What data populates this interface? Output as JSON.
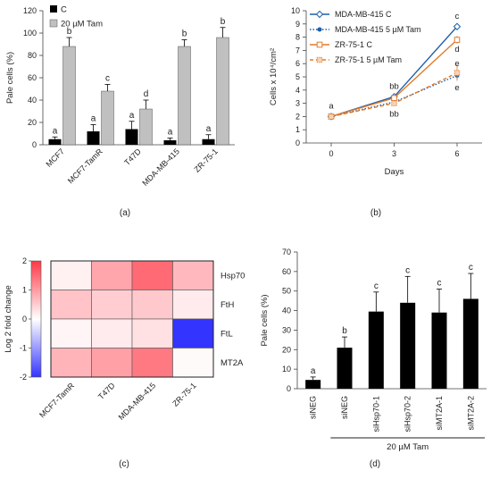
{
  "panels": {
    "a": {
      "label": "(a)",
      "chart_data": {
        "type": "bar",
        "ylabel": "Pale cells (%)",
        "ylim": [
          0,
          120
        ],
        "yticks": [
          0,
          20,
          40,
          60,
          80,
          100,
          120
        ],
        "categories": [
          "MCF7",
          "MCF7-TamR",
          "T47D",
          "MDA-MB-415",
          "ZR-75-1"
        ],
        "legend_position": "top-left",
        "series": [
          {
            "name": "C",
            "color": "#000000",
            "values": [
              5,
              12,
              14,
              4,
              5
            ],
            "errors": [
              2,
              6,
              7,
              2,
              4
            ],
            "letters": [
              "a",
              "a",
              "a",
              "a",
              "a"
            ]
          },
          {
            "name": "20 µM Tam",
            "color": "#c0c0c0",
            "values": [
              88,
              48,
              32,
              88,
              96
            ],
            "errors": [
              8,
              6,
              8,
              6,
              9
            ],
            "letters": [
              "b",
              "c",
              "d",
              "b",
              "b"
            ]
          }
        ]
      }
    },
    "b": {
      "label": "(b)",
      "chart_data": {
        "type": "line",
        "xlabel": "Days",
        "ylabel": "Cells x 10⁴/cm²",
        "x": [
          0,
          3,
          6
        ],
        "ylim": [
          0,
          10
        ],
        "yticks": [
          0,
          1,
          2,
          3,
          4,
          5,
          6,
          7,
          8,
          9,
          10
        ],
        "legend_position": "top-left",
        "series": [
          {
            "name": "MDA-MB-415 C",
            "color": "#1f5fa8",
            "dash": "solid",
            "marker": "diamond",
            "values": [
              2.0,
              3.5,
              8.8
            ],
            "errors": [
              0.1,
              0.15,
              0.2
            ]
          },
          {
            "name": "MDA-MB-415 5 µM Tam",
            "color": "#1f5fa8",
            "dash": "dotted",
            "marker": "circle-filled",
            "values": [
              2.0,
              3.1,
              5.1
            ],
            "errors": [
              0.1,
              0.15,
              0.3
            ]
          },
          {
            "name": "ZR-75-1 C",
            "color": "#e07b2a",
            "dash": "solid",
            "marker": "square",
            "values": [
              2.0,
              3.4,
              7.8
            ],
            "errors": [
              0.1,
              0.15,
              0.3
            ]
          },
          {
            "name": "ZR-75-1 5 µM Tam",
            "color": "#e07b2a",
            "dash": "dashed",
            "marker": "square-dotted",
            "values": [
              2.0,
              3.0,
              5.3
            ],
            "errors": [
              0.1,
              0.15,
              0.6
            ]
          }
        ],
        "annotations": [
          {
            "x": 0,
            "letter": "a",
            "y_pos": 2.8
          },
          {
            "x": 3,
            "letter": "bb",
            "y_pos": 4.3
          },
          {
            "x": 3,
            "letter": "bb",
            "y_pos": 2.2
          },
          {
            "x": 6,
            "letter": "c",
            "y_pos": 9.6
          },
          {
            "x": 6,
            "letter": "d",
            "y_pos": 7.1
          },
          {
            "x": 6,
            "letter": "e",
            "y_pos": 6.0
          },
          {
            "x": 6,
            "letter": "e",
            "y_pos": 4.2
          }
        ]
      }
    },
    "c": {
      "label": "(c)",
      "chart_data": {
        "type": "heatmap",
        "colorbar_label": "Log 2 fold change",
        "colorbar_ticks": [
          2,
          1,
          0,
          -1,
          -2
        ],
        "vmin": -2,
        "vmax": 2,
        "columns": [
          "MCF7-TamR",
          "T47D",
          "MDA-MB-415",
          "ZR-75-1"
        ],
        "rows": [
          "Hsp70",
          "FtH",
          "FtL",
          "MT2A"
        ],
        "values": [
          [
            0.15,
            0.9,
            1.5,
            0.7
          ],
          [
            0.6,
            0.5,
            0.55,
            0.2
          ],
          [
            0.1,
            0.2,
            0.3,
            -2.0
          ],
          [
            0.75,
            0.95,
            1.35,
            0.05
          ]
        ]
      }
    },
    "d": {
      "label": "(d)",
      "chart_data": {
        "type": "bar",
        "ylabel": "Pale cells (%)",
        "ylim": [
          0,
          70
        ],
        "yticks": [
          0,
          10,
          20,
          30,
          40,
          50,
          60,
          70
        ],
        "categories": [
          "siNEG",
          "siNEG",
          "siHsp70-1",
          "siHsp70-2",
          "siMT2A-1",
          "siMT2A-2"
        ],
        "values": [
          4.5,
          21,
          39.5,
          44,
          39,
          46
        ],
        "errors": [
          1.5,
          5.5,
          10,
          13.5,
          12,
          13
        ],
        "letters": [
          "a",
          "b",
          "c",
          "c",
          "c",
          "c"
        ],
        "color": "#000000",
        "group_label": "20 µM Tam"
      }
    }
  }
}
